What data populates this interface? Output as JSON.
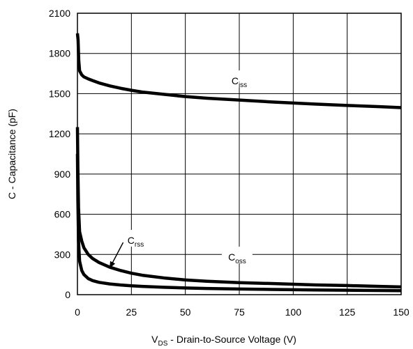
{
  "chart_data": {
    "type": "line",
    "title": "",
    "xlabel": {
      "main": "V",
      "sub": "DS",
      "rest": " - Drain-to-Source Voltage (V)"
    },
    "ylabel": "C - Capacitance (pF)",
    "xlim": [
      0,
      150
    ],
    "ylim": [
      0,
      2100
    ],
    "xticks": [
      0,
      25,
      50,
      75,
      100,
      125,
      150
    ],
    "yticks": [
      0,
      300,
      600,
      900,
      1200,
      1500,
      1800,
      2100
    ],
    "grid": true,
    "legend": "none",
    "line_color": "#000000",
    "series": [
      {
        "name": {
          "main": "C",
          "sub": "iss"
        },
        "x": [
          0,
          0.3,
          0.6,
          1,
          2,
          3,
          5,
          7,
          10,
          15,
          20,
          25,
          30,
          40,
          50,
          60,
          75,
          90,
          100,
          110,
          125,
          140,
          150
        ],
        "y": [
          1950,
          1900,
          1750,
          1670,
          1640,
          1625,
          1610,
          1598,
          1580,
          1558,
          1540,
          1525,
          1512,
          1495,
          1478,
          1466,
          1452,
          1438,
          1430,
          1422,
          1412,
          1403,
          1396
        ]
      },
      {
        "name": {
          "main": "C",
          "sub": "oss"
        },
        "x": [
          0,
          0.2,
          0.5,
          1,
          2,
          3,
          5,
          7,
          10,
          15,
          20,
          25,
          30,
          40,
          50,
          60,
          75,
          90,
          100,
          110,
          125,
          140,
          150
        ],
        "y": [
          1250,
          950,
          650,
          470,
          400,
          350,
          300,
          270,
          240,
          205,
          180,
          160,
          145,
          125,
          110,
          100,
          90,
          83,
          78,
          73,
          68,
          62,
          58
        ]
      },
      {
        "name": {
          "main": "C",
          "sub": "rss"
        },
        "x": [
          0,
          0.2,
          0.5,
          1,
          2,
          3,
          5,
          7,
          10,
          15,
          20,
          25,
          30,
          40,
          50,
          60,
          75,
          90,
          100,
          110,
          125,
          140,
          150
        ],
        "y": [
          1050,
          700,
          400,
          250,
          180,
          150,
          120,
          105,
          92,
          80,
          72,
          66,
          62,
          55,
          50,
          46,
          42,
          39,
          37,
          35,
          33,
          31,
          30
        ]
      }
    ],
    "annotations": [
      {
        "series": 0,
        "text": {
          "main": "C",
          "sub": "iss"
        },
        "at": [
          75,
          1590
        ]
      },
      {
        "series": 1,
        "text": {
          "main": "C",
          "sub": "oss"
        },
        "at": [
          74,
          275
        ]
      },
      {
        "series": 2,
        "text": {
          "main": "C",
          "sub": "rss"
        },
        "at": [
          27,
          400
        ],
        "arrow_to": [
          15,
          200
        ]
      }
    ]
  }
}
